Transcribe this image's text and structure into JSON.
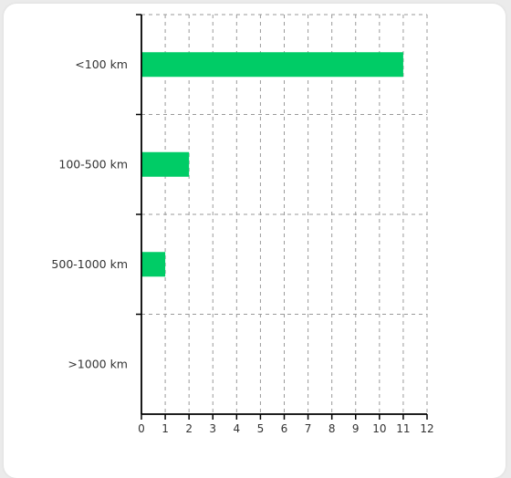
{
  "chart_data": {
    "type": "bar",
    "orientation": "horizontal",
    "categories": [
      "<100 km",
      "100-500 km",
      "500-1000 km",
      ">1000 km"
    ],
    "values": [
      11,
      2,
      1,
      0
    ],
    "xlim": [
      0,
      12
    ],
    "x_ticks": [
      "0",
      "1",
      "2",
      "3",
      "4",
      "5",
      "6",
      "7",
      "8",
      "9",
      "10",
      "11",
      "12"
    ],
    "title": "",
    "xlabel": "",
    "ylabel": "",
    "grid": true,
    "grid_style": "dashed",
    "legend": "none",
    "bar_color": "#00cc66"
  }
}
